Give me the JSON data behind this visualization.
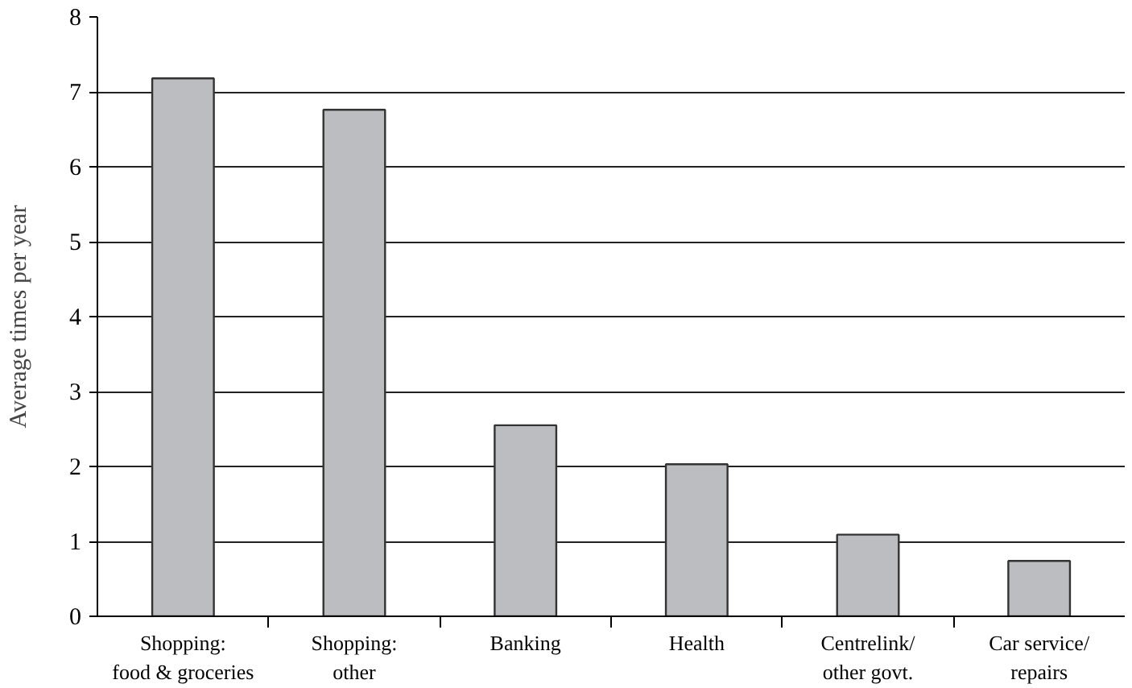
{
  "chart_data": {
    "type": "bar",
    "ylabel": "Average times per year",
    "categories": [
      "Shopping:\nfood & groceries",
      "Shopping:\nother",
      "Banking",
      "Health",
      "Centrelink/\nother govt.",
      "Car service/\nrepairs"
    ],
    "values": [
      7.18,
      6.76,
      2.55,
      2.03,
      1.09,
      0.74
    ],
    "color": "#bcbdc1",
    "ylim": [
      0,
      8
    ],
    "yticks": [
      0,
      1,
      2,
      3,
      4,
      5,
      6,
      7,
      8
    ],
    "grid": "y"
  }
}
